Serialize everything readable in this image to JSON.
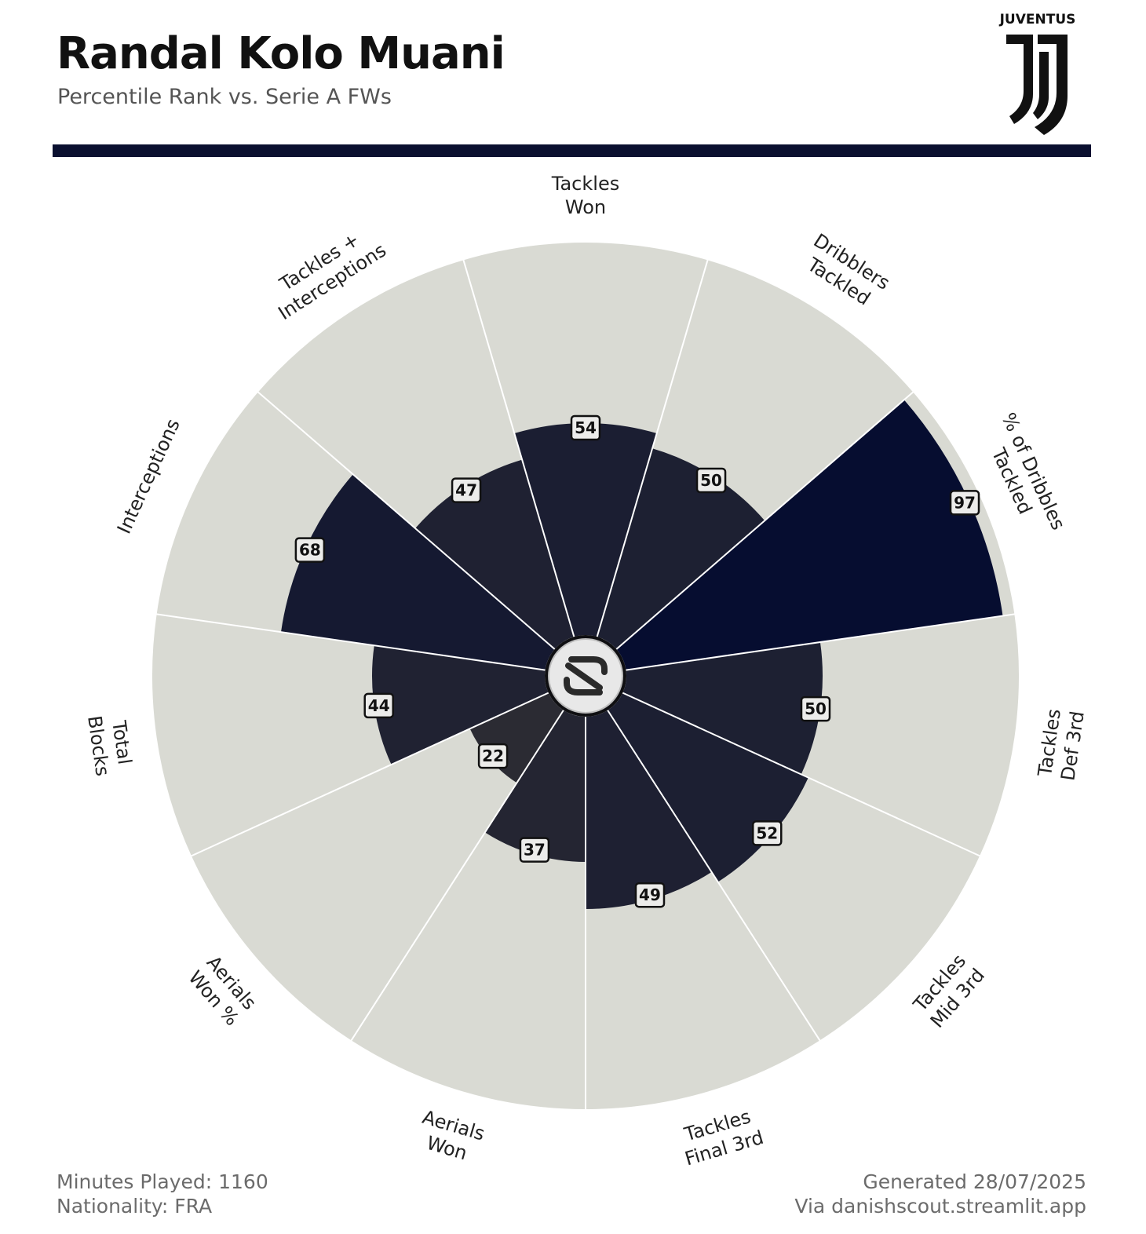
{
  "header": {
    "title": "Randal Kolo Muani",
    "subtitle": "Percentile Rank vs. Serie A FWs",
    "club_logo_text": "JUVENTUS",
    "bar_color": "#0b1030"
  },
  "footer": {
    "minutes": "Minutes Played: 1160",
    "nationality": "Nationality: FRA",
    "generated": "Generated 28/07/2025",
    "source": "Via danishscout.streamlit.app"
  },
  "colors": {
    "background_wedge": "#d9dad3",
    "value_wedge_low": "#2c2c33",
    "value_wedge_high": "#050c30",
    "label_box_fill": "#ececea",
    "label_box_stroke": "#111111"
  },
  "center_logo": "danishscout-logo-icon",
  "chart_data": {
    "type": "polar-bar",
    "title": "",
    "range": [
      0,
      100
    ],
    "categories": [
      [
        "Tackles",
        "Won"
      ],
      [
        "Dribblers",
        "Tackled"
      ],
      [
        "% of Dribbles",
        "Tackled"
      ],
      [
        "Tackles",
        "Def 3rd"
      ],
      [
        "Tackles",
        "Mid 3rd"
      ],
      [
        "Tackles",
        "Final 3rd"
      ],
      [
        "Aerials",
        "Won"
      ],
      [
        "Aerials",
        "Won %"
      ],
      [
        "Total",
        "Blocks"
      ],
      [
        "Interceptions"
      ],
      [
        "Tackles +",
        "Interceptions"
      ]
    ],
    "values": [
      54,
      50,
      97,
      50,
      52,
      49,
      37,
      22,
      44,
      68,
      47
    ]
  }
}
